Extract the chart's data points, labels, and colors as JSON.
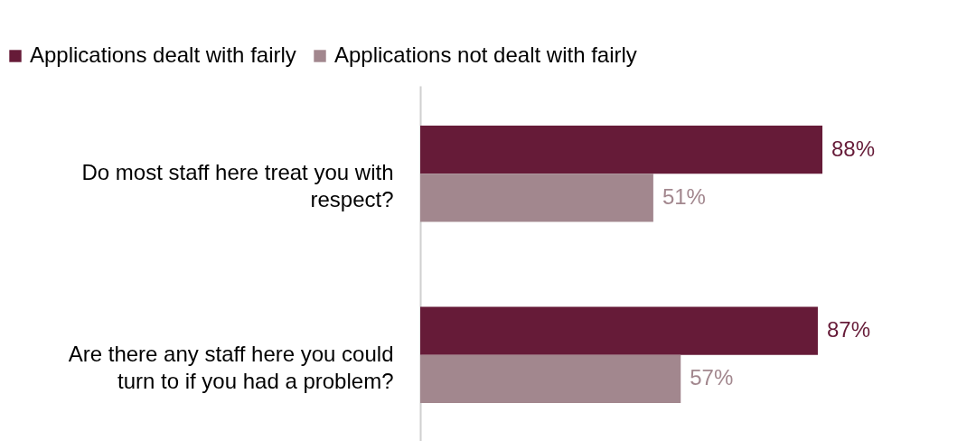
{
  "chart_data": {
    "type": "bar",
    "orientation": "horizontal",
    "categories": [
      "Do most staff here treat you with respect?",
      "Are there any staff here you could turn to if you had a problem?"
    ],
    "series": [
      {
        "name": "Applications dealt with fairly",
        "color": "#661b38",
        "values": [
          88,
          87
        ],
        "value_labels": [
          "88%",
          "87%"
        ]
      },
      {
        "name": "Applications not dealt with fairly",
        "color": "#a2878e",
        "values": [
          51,
          57
        ],
        "value_labels": [
          "51%",
          "57%"
        ]
      }
    ],
    "legend": "top",
    "grid": false
  }
}
